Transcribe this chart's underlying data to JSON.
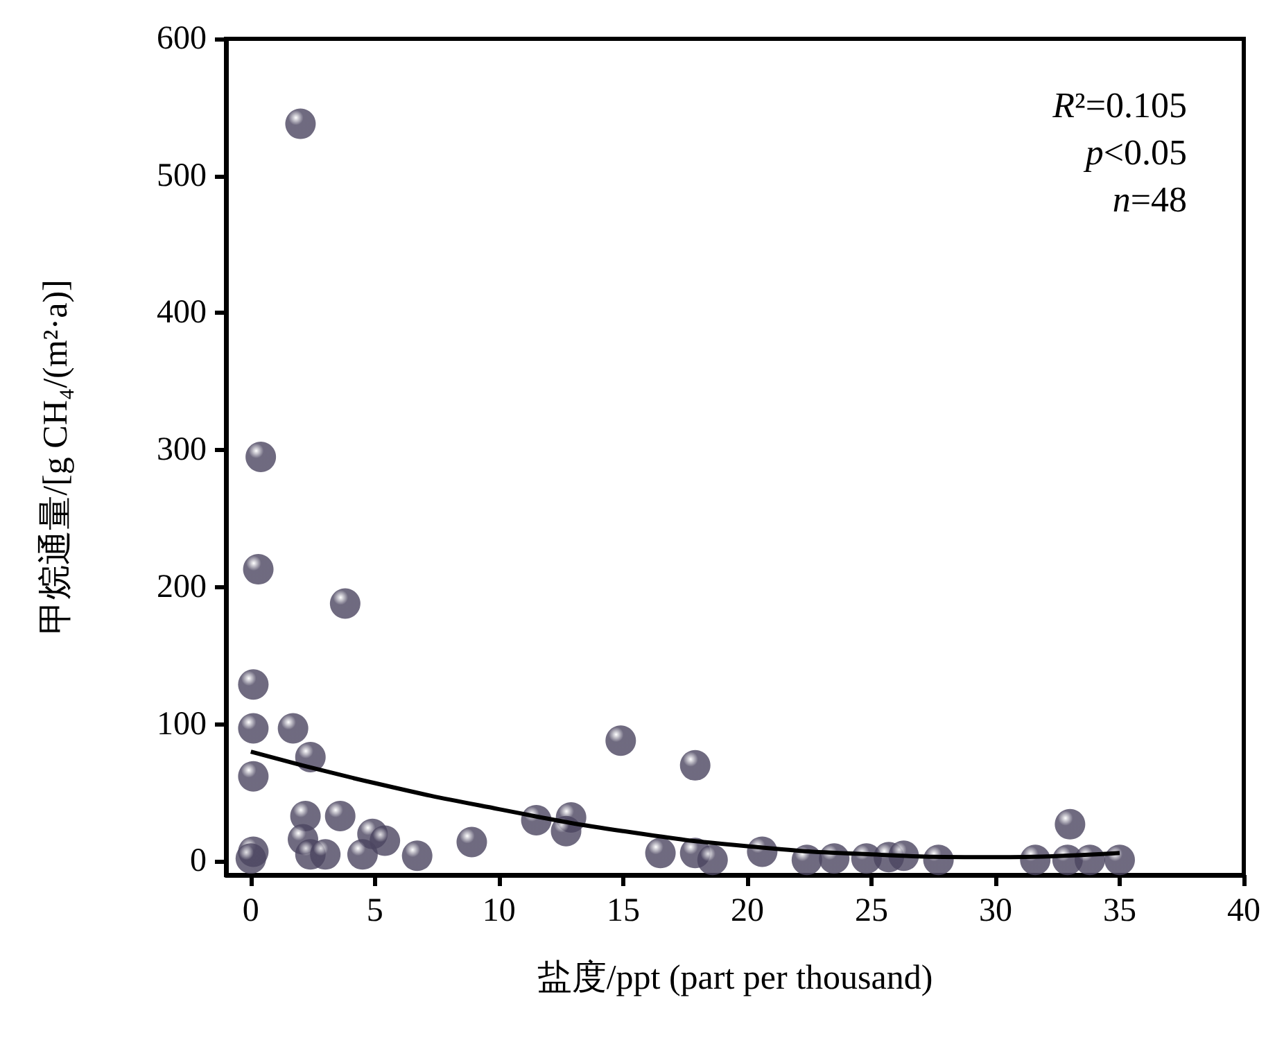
{
  "chart_data": {
    "type": "scatter",
    "xlabel": "盐度/ppt (part per thousand)",
    "ylabel": "甲烷通量/[g CH₄/(m²·a)]",
    "xlim": [
      -1,
      40
    ],
    "ylim": [
      -10,
      600
    ],
    "xticks": [
      0,
      5,
      10,
      15,
      20,
      25,
      30,
      35,
      40
    ],
    "yticks": [
      0,
      100,
      200,
      300,
      400,
      500,
      600
    ],
    "grid": false,
    "marker": "circle",
    "annotations": [
      "R²=0.105",
      "p<0.05",
      "n=48"
    ],
    "series": [
      {
        "color": "#4b4560",
        "x": [
          2.0,
          0.4,
          0.3,
          3.8,
          0.1,
          0.1,
          1.7,
          2.4,
          0.1,
          2.2,
          3.6,
          2.1,
          0.1,
          0.0,
          2.4,
          3.0,
          4.9,
          5.4,
          4.5,
          6.7,
          8.9,
          11.5,
          12.9,
          12.7,
          14.9,
          17.9,
          16.5,
          17.9,
          18.6,
          20.6,
          22.4,
          23.5,
          24.8,
          25.7,
          26.3,
          27.7,
          31.6,
          33.0,
          32.9,
          33.8,
          35.0
        ],
        "values": [
          538,
          295,
          213,
          188,
          129,
          97,
          97,
          76,
          62,
          33,
          33,
          16,
          7,
          2,
          5,
          5,
          20,
          15,
          5,
          4,
          14,
          30,
          32,
          22,
          88,
          70,
          6,
          6,
          1,
          7,
          1,
          2,
          2,
          3,
          4,
          1,
          1,
          27,
          1,
          1,
          1
        ]
      },
      {
        "type": "line",
        "color": "#000000",
        "marker": "none",
        "x": [
          0,
          5,
          10,
          15,
          20,
          25,
          30,
          35
        ],
        "values": [
          80,
          57,
          38,
          22,
          11,
          5,
          3,
          6
        ]
      }
    ]
  }
}
